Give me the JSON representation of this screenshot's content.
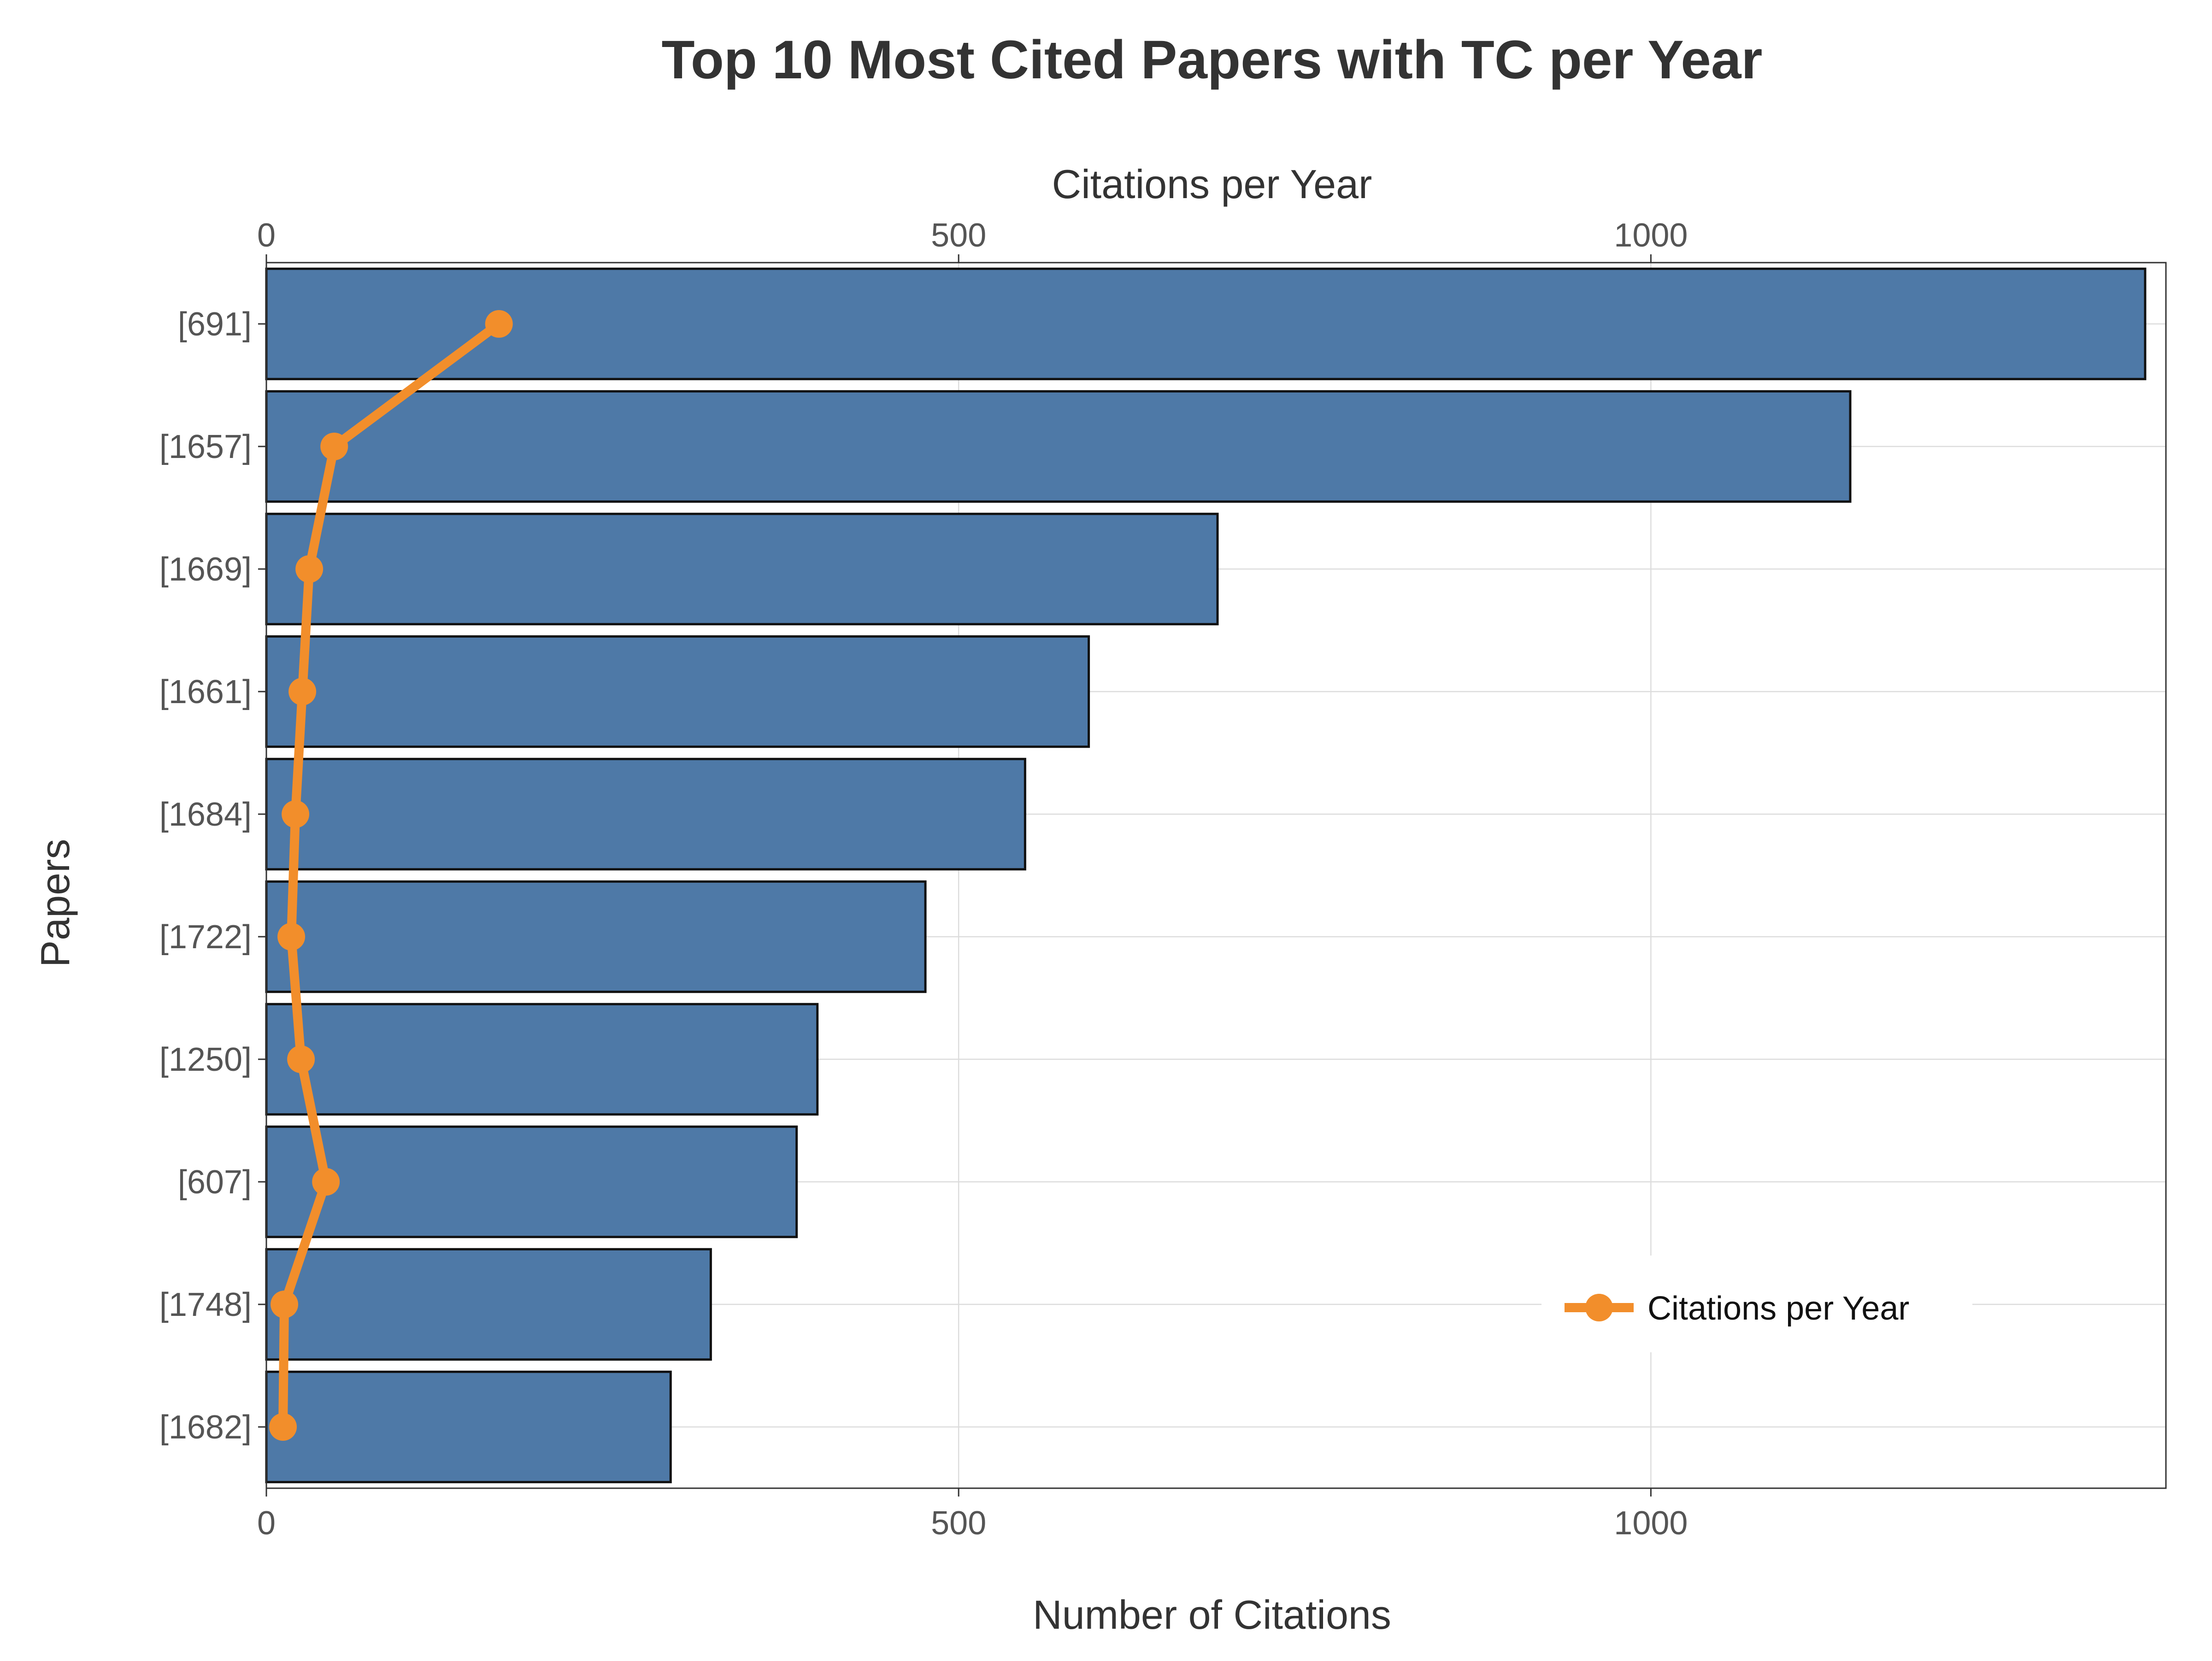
{
  "chart_data": {
    "type": "bar",
    "orientation": "horizontal",
    "title": "Top 10 Most Cited Papers with TC per Year",
    "xlabel": "Number of Citations",
    "ylabel": "Papers",
    "secondary_xlabel": "Citations per Year",
    "categories": [
      "[691]",
      "[1657]",
      "[1669]",
      "[1661]",
      "[1684]",
      "[1722]",
      "[1250]",
      "[607]",
      "[1748]",
      "[1682]"
    ],
    "series": [
      {
        "name": "Number of Citations",
        "type": "bar",
        "values": [
          1357,
          1144,
          687,
          594,
          548,
          476,
          398,
          383,
          321,
          292
        ],
        "color": "#4e79a7"
      },
      {
        "name": "Citations per Year",
        "type": "line",
        "values": [
          168,
          49,
          31,
          26,
          21,
          18,
          25,
          43,
          13,
          12
        ],
        "color": "#f28e2b"
      }
    ],
    "xlim": [
      0,
      1372
    ],
    "secondary_xlim": [
      0,
      1372
    ],
    "xticks": [
      0,
      500,
      1000
    ],
    "secondary_xticks": [
      0,
      500,
      1000
    ],
    "grid": true,
    "legend": {
      "entries": [
        "Citations per Year"
      ],
      "position": "bottom-right"
    }
  }
}
